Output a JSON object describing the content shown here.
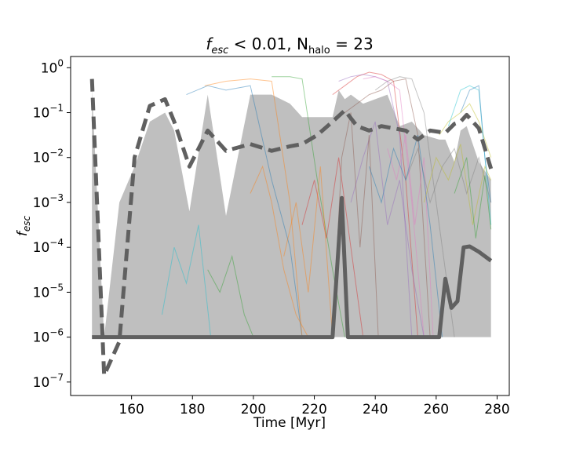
{
  "chart_data": {
    "type": "line",
    "title": "f_esc < 0.01, N_halo = 23",
    "title_parts": {
      "f": "f",
      "f_sub": "esc",
      "condition": " < 0.01, ",
      "n": "N",
      "n_sub": "halo",
      "count": " = 23"
    },
    "xlabel": "Time [Myr]",
    "ylabel": "f_esc",
    "ylabel_parts": {
      "main": "f",
      "sub": "esc"
    },
    "xlim": [
      140,
      284
    ],
    "ylim_log10": [
      -7.3,
      0.25
    ],
    "y_scale": "log",
    "x_ticks": [
      160,
      180,
      200,
      220,
      240,
      260,
      280
    ],
    "y_ticks": [
      {
        "base": "10",
        "exp": "0",
        "log10": 0
      },
      {
        "base": "10",
        "exp": "−1",
        "log10": -1
      },
      {
        "base": "10",
        "exp": "−2",
        "log10": -2
      },
      {
        "base": "10",
        "exp": "−3",
        "log10": -3
      },
      {
        "base": "10",
        "exp": "−4",
        "log10": -4
      },
      {
        "base": "10",
        "exp": "−5",
        "log10": -5
      },
      {
        "base": "10",
        "exp": "−6",
        "log10": -6
      },
      {
        "base": "10",
        "exp": "−7",
        "log10": -7
      }
    ],
    "grid": false,
    "range_band": {
      "color": "#bfbfbf",
      "x": [
        147,
        151,
        156,
        161,
        166,
        171,
        174,
        179,
        185,
        191,
        199,
        206,
        212,
        216,
        221,
        226,
        228,
        230,
        232,
        236,
        240,
        244,
        248,
        252,
        256,
        261,
        263,
        266,
        268,
        270,
        274,
        278
      ],
      "upper_log10": [
        -0.5,
        -6.0,
        -3.0,
        -2.2,
        -1.2,
        -1.0,
        -1.4,
        -3.2,
        -0.6,
        -3.3,
        -0.6,
        -0.6,
        -0.8,
        -1.1,
        -1.1,
        -1.1,
        -0.5,
        -0.7,
        -0.6,
        -0.8,
        -0.7,
        -0.6,
        -1.3,
        -1.2,
        -1.5,
        -1.6,
        -1.6,
        -2.1,
        -1.4,
        -1.3,
        -2.1,
        -2.5
      ],
      "lower_log10": [
        -6,
        -6,
        -6,
        -6,
        -6,
        -6,
        -6,
        -6,
        -6,
        -6,
        -6,
        -6,
        -6,
        -6,
        -6,
        -6,
        -6,
        -6,
        -6,
        -6,
        -6,
        -6,
        -6,
        -6,
        -6,
        -6,
        -6,
        -6,
        -6,
        -6,
        -6,
        -6
      ]
    },
    "mean_line": {
      "style": "dashed",
      "color": "#606060",
      "x": [
        147,
        151,
        156,
        161,
        166,
        171,
        174,
        179,
        185,
        191,
        199,
        206,
        212,
        216,
        221,
        226,
        230,
        234,
        238,
        242,
        246,
        250,
        254,
        258,
        263,
        266,
        268,
        270,
        274,
        278
      ],
      "y_log10": [
        -0.25,
        -6.85,
        -6.1,
        -2.0,
        -0.85,
        -0.7,
        -1.2,
        -2.2,
        -1.4,
        -1.85,
        -1.7,
        -1.85,
        -1.75,
        -1.7,
        -1.5,
        -1.2,
        -0.95,
        -1.3,
        -1.4,
        -1.3,
        -1.35,
        -1.4,
        -1.6,
        -1.4,
        -1.45,
        -1.25,
        -1.2,
        -1.05,
        -1.35,
        -2.25
      ]
    },
    "median_line": {
      "style": "solid",
      "color": "#606060",
      "x": [
        147,
        150,
        156,
        161,
        166,
        171,
        176,
        181,
        186,
        191,
        196,
        201,
        206,
        211,
        216,
        221,
        226,
        229,
        231,
        236,
        241,
        246,
        251,
        256,
        261,
        263,
        265,
        267,
        269,
        271,
        274,
        278
      ],
      "y_log10": [
        -6,
        -6,
        -6,
        -6,
        -6,
        -6,
        -6,
        -6,
        -6,
        -6,
        -6,
        -6,
        -6,
        -6,
        -6,
        -6,
        -6,
        -2.9,
        -6,
        -6,
        -6,
        -6,
        -6,
        -6,
        -6,
        -4.7,
        -5.35,
        -5.2,
        -4.0,
        -3.98,
        -4.1,
        -4.3
      ]
    },
    "individual_halos": {
      "count": 23,
      "colors": [
        "#1f77b4",
        "#ff7f0e",
        "#2ca02c",
        "#d62728",
        "#9467bd",
        "#8c564b",
        "#e377c2",
        "#7f7f7f",
        "#bcbd22",
        "#17becf"
      ],
      "series": [
        {
          "x": [
            178,
            185,
            191,
            199,
            206,
            212,
            216,
            221,
            226
          ],
          "y_log10": [
            -0.6,
            -0.4,
            -0.5,
            -0.4,
            -2.5,
            -4.0,
            -6,
            -6,
            -6
          ]
        },
        {
          "x": [
            184,
            191,
            199,
            206,
            212,
            216
          ],
          "y_log10": [
            -0.4,
            -0.3,
            -0.25,
            -0.3,
            -3.0,
            -6
          ]
        },
        {
          "x": [
            206,
            212,
            216,
            221,
            226,
            230
          ],
          "y_log10": [
            -0.2,
            -0.2,
            -0.25,
            -2.5,
            -4.5,
            -6
          ]
        },
        {
          "x": [
            226,
            230,
            234,
            238,
            242,
            246,
            250,
            254
          ],
          "y_log10": [
            -0.6,
            -0.4,
            -0.2,
            -0.1,
            -0.15,
            -0.3,
            -2.5,
            -6
          ]
        },
        {
          "x": [
            228,
            232,
            236,
            240,
            244,
            248,
            252
          ],
          "y_log10": [
            -0.3,
            -0.2,
            -0.15,
            -0.2,
            -0.3,
            -1.5,
            -6
          ]
        },
        {
          "x": [
            230,
            234,
            238,
            242,
            246,
            250,
            254,
            258
          ],
          "y_log10": [
            -1.0,
            -0.8,
            -0.6,
            -0.5,
            -0.3,
            -0.25,
            -1.5,
            -6
          ]
        },
        {
          "x": [
            236,
            240,
            244,
            248,
            252,
            256
          ],
          "y_log10": [
            -0.25,
            -0.2,
            -0.3,
            -0.5,
            -3.0,
            -6
          ]
        },
        {
          "x": [
            240,
            244,
            248,
            252,
            256,
            261,
            266
          ],
          "y_log10": [
            -0.5,
            -0.3,
            -0.2,
            -0.25,
            -1.0,
            -3.5,
            -6
          ]
        },
        {
          "x": [
            261,
            264,
            268,
            271,
            274,
            278
          ],
          "y_log10": [
            -1.5,
            -1.2,
            -1.0,
            -0.8,
            -1.2,
            -2.0
          ]
        },
        {
          "x": [
            264,
            268,
            271,
            274,
            278
          ],
          "y_log10": [
            -1.3,
            -0.5,
            -0.4,
            -0.5,
            -3.5
          ]
        },
        {
          "x": [
            268,
            271,
            274,
            276,
            278
          ],
          "y_log10": [
            -1.0,
            -0.5,
            -0.4,
            -2.0,
            -3.0
          ]
        },
        {
          "x": [
            199,
            203,
            206,
            210,
            214,
            218
          ],
          "y_log10": [
            -2.8,
            -2.2,
            -3.0,
            -4.5,
            -5.5,
            -6
          ]
        },
        {
          "x": [
            185,
            189,
            193,
            197,
            200
          ],
          "y_log10": [
            -4.5,
            -5.0,
            -4.2,
            -5.5,
            -6
          ]
        },
        {
          "x": [
            216,
            220,
            224,
            228,
            232,
            236
          ],
          "y_log10": [
            -3.5,
            -2.5,
            -3.8,
            -2.0,
            -4.0,
            -6
          ]
        },
        {
          "x": [
            232,
            236,
            240,
            244,
            248,
            252,
            256
          ],
          "y_log10": [
            -3.0,
            -2.0,
            -1.2,
            -3.5,
            -2.5,
            -4.5,
            -6
          ]
        },
        {
          "x": [
            226,
            229,
            232,
            235,
            238,
            241
          ],
          "y_log10": [
            -6,
            -2.0,
            -1.0,
            -4.0,
            -1.5,
            -6
          ]
        },
        {
          "x": [
            244,
            247,
            250,
            253,
            256,
            259
          ],
          "y_log10": [
            -1.8,
            -2.5,
            -1.5,
            -3.5,
            -2.0,
            -6
          ]
        },
        {
          "x": [
            250,
            254,
            258,
            262,
            266,
            270,
            274,
            278
          ],
          "y_log10": [
            -2.5,
            -1.8,
            -3.0,
            -2.2,
            -1.8,
            -2.8,
            -2.0,
            -3.0
          ]
        },
        {
          "x": [
            256,
            260,
            264,
            268,
            272,
            276,
            278
          ],
          "y_log10": [
            -3.0,
            -2.0,
            -2.5,
            -1.7,
            -3.5,
            -2.2,
            -2.5
          ]
        },
        {
          "x": [
            170,
            174,
            178,
            182,
            186
          ],
          "y_log10": [
            -5.5,
            -4.0,
            -4.8,
            -3.5,
            -6
          ]
        },
        {
          "x": [
            238,
            242,
            246,
            250,
            254,
            258,
            262
          ],
          "y_log10": [
            -2.2,
            -3.0,
            -1.8,
            -2.5,
            -1.5,
            -3.5,
            -6
          ]
        },
        {
          "x": [
            210,
            214,
            218,
            222,
            226
          ],
          "y_log10": [
            -4.2,
            -3.0,
            -5.0,
            -2.2,
            -6
          ]
        },
        {
          "x": [
            266,
            270,
            273,
            276,
            278
          ],
          "y_log10": [
            -2.8,
            -2.0,
            -3.8,
            -2.4,
            -3.6
          ]
        }
      ]
    }
  }
}
